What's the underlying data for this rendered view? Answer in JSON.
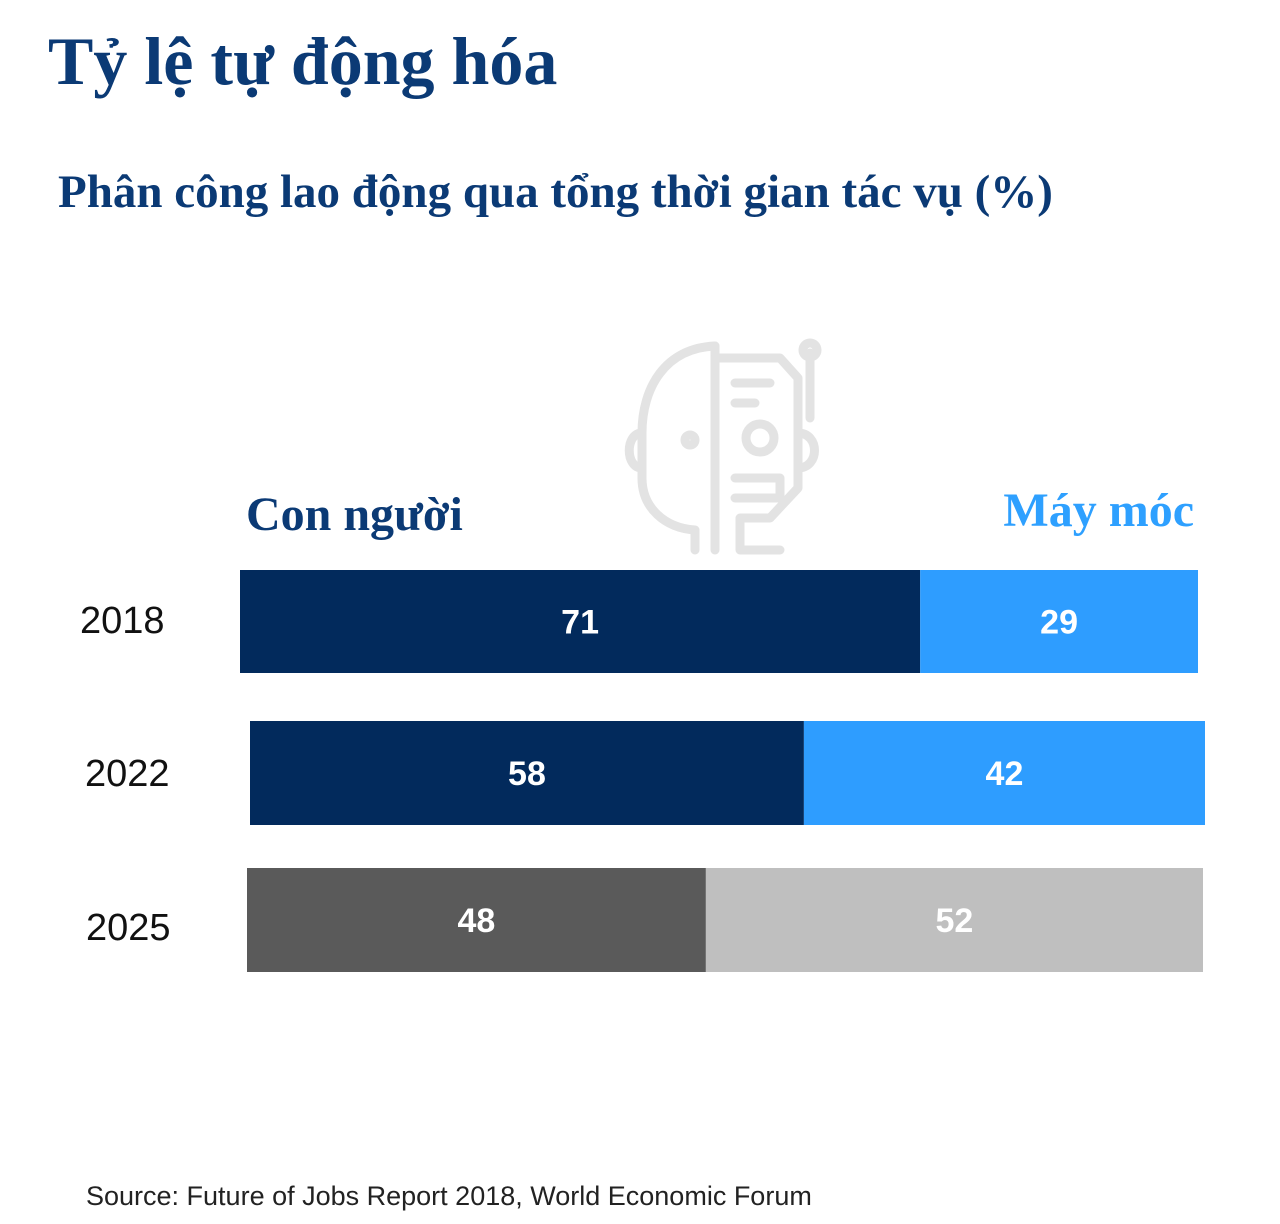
{
  "title": "Tỷ lệ tự động hóa",
  "subtitle": "Phân công lao động qua tổng thời gian tác vụ (%)",
  "source": "Source: Future of Jobs Report 2018, World Economic Forum",
  "watermark_icon": "human-robot-face-icon",
  "chart_data": {
    "type": "bar",
    "orientation": "horizontal",
    "stacked": true,
    "title": "Phân công lao động qua tổng thời gian tác vụ (%)",
    "categories": [
      "2018",
      "2022",
      "2025"
    ],
    "series": [
      {
        "name": "Con người",
        "values": [
          71,
          58,
          48
        ],
        "colors": [
          "#022a5c",
          "#022a5c",
          "#5a5a5a"
        ]
      },
      {
        "name": "Máy móc",
        "values": [
          29,
          42,
          52
        ],
        "colors": [
          "#2e9dff",
          "#2e9dff",
          "#bfbfbf"
        ]
      }
    ],
    "legend": {
      "human": "Con người",
      "machine": "Máy móc",
      "placement": "top"
    },
    "xlim": [
      0,
      100
    ],
    "grid": false,
    "data_labels": true
  }
}
